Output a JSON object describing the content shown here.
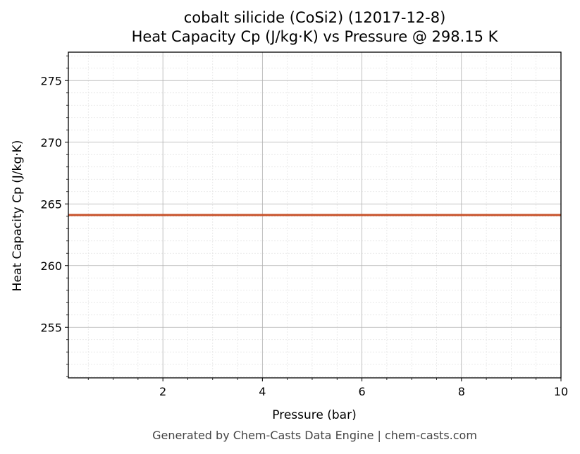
{
  "chart_data": {
    "type": "line",
    "title": "cobalt silicide (CoSi2) (12017-12-8)",
    "subtitle": "Heat Capacity Cp (J/kg·K) vs Pressure @ 298.15 K",
    "xlabel": "Pressure (bar)",
    "ylabel": "Heat Capacity Cp (J/kg·K)",
    "xlim": [
      0.1,
      10
    ],
    "ylim": [
      250.9,
      277.3
    ],
    "xticks": [
      2,
      4,
      6,
      8,
      10
    ],
    "yticks": [
      255,
      260,
      265,
      270,
      275
    ],
    "grid": true,
    "minor_grid": true,
    "line_color": "#c8522a",
    "series": [
      {
        "x": [
          0.1,
          10
        ],
        "y": [
          264.1,
          264.1
        ]
      }
    ]
  },
  "footer": "Generated by Chem-Casts Data Engine | chem-casts.com"
}
